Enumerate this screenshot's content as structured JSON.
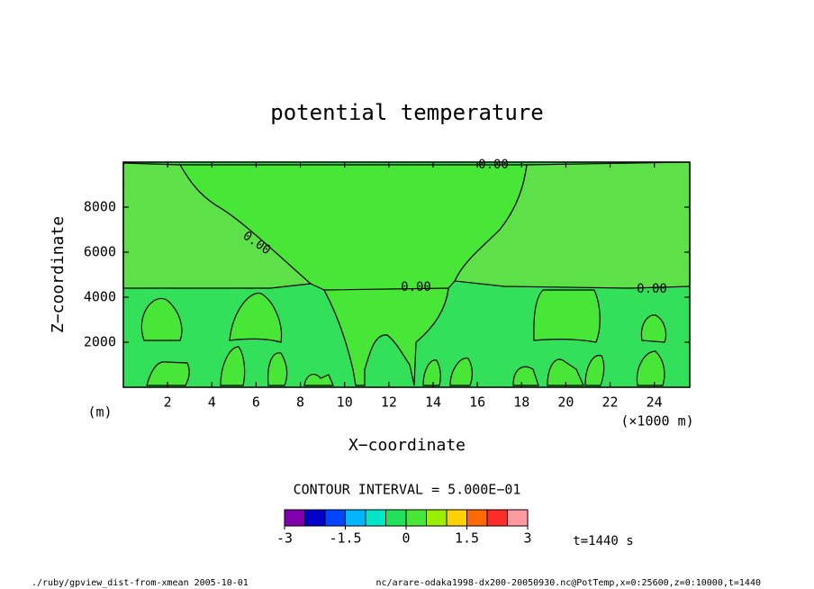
{
  "chart_data": {
    "type": "contour",
    "title": "potential temperature",
    "x_label": "X−coordinate",
    "x_unit": "(×1000 m)",
    "y_label": "Z−coordinate",
    "y_unit": "(m)",
    "xlim": [
      0,
      25.6
    ],
    "ylim": [
      0,
      10000
    ],
    "xticks": [
      2,
      4,
      6,
      8,
      10,
      12,
      14,
      16,
      18,
      20,
      22,
      24
    ],
    "yticks": [
      2000,
      4000,
      6000,
      8000
    ],
    "contour_labels": [
      "0.00",
      "0.00",
      "0.00",
      "0.00"
    ],
    "contour_interval": "CONTOUR INTERVAL = 5.000E−01",
    "colorbar": {
      "levels": [
        -3,
        -2.5,
        -2,
        -1.5,
        -1,
        -0.5,
        0,
        0.5,
        1,
        1.5,
        2,
        2.5,
        3
      ],
      "colors": [
        "#8000b0",
        "#0000c8",
        "#0046ff",
        "#00b4ff",
        "#00e6c8",
        "#22e05a",
        "#48e636",
        "#9aee00",
        "#ffd200",
        "#ff6a00",
        "#ff2a2a",
        "#ff9aa0"
      ],
      "ticks": [
        -3,
        -1.5,
        0,
        1.5,
        3
      ]
    },
    "time": "t=1440 s",
    "footer_left": "./ruby/gpview_dist-from-xmean  2005-10-01",
    "footer_right": "nc/arare-odaka1998-dx200-20050930.nc@PotTemp,x=0:25600,z=0:10000,t=1440"
  }
}
